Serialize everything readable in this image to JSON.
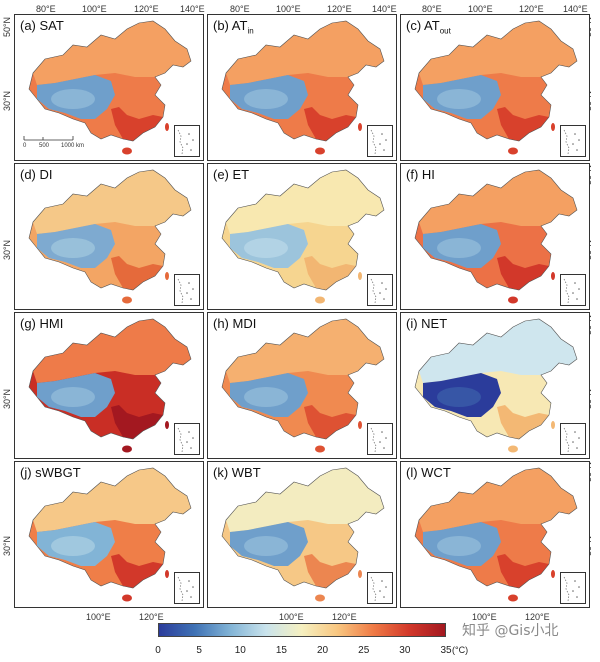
{
  "axes": {
    "top_ticks": [
      "80°E",
      "100°E",
      "120°E",
      "140°E"
    ],
    "bottom_ticks": [
      "100°E",
      "120°E"
    ],
    "lat_ticks": [
      "50°N",
      "30°N"
    ]
  },
  "panels": [
    {
      "label": "(a) SAT",
      "name": "sat"
    },
    {
      "label_main": "(b) AT",
      "label_sub": "in",
      "name": "at-in"
    },
    {
      "label_main": "(c) AT",
      "label_sub": "out",
      "name": "at-out"
    },
    {
      "label": "(d) DI",
      "name": "di"
    },
    {
      "label": "(e) ET",
      "name": "et"
    },
    {
      "label": "(f) HI",
      "name": "hi"
    },
    {
      "label": "(g) HMI",
      "name": "hmi"
    },
    {
      "label": "(h) MDI",
      "name": "mdi"
    },
    {
      "label": "(i) NET",
      "name": "net"
    },
    {
      "label": "(j) sWBGT",
      "name": "swbgt"
    },
    {
      "label": "(k) WBT",
      "name": "wbt"
    },
    {
      "label": "(l) WCT",
      "name": "wct"
    }
  ],
  "scale_bar": {
    "ticks": [
      "0",
      "500",
      "1000 km"
    ]
  },
  "colorbar": {
    "ticks": [
      "0",
      "5",
      "10",
      "15",
      "20",
      "25",
      "30",
      "35"
    ],
    "unit": "(°C)",
    "colors": [
      "#2b3c9b",
      "#3f72b5",
      "#82b4d6",
      "#c9e3ec",
      "#f6f0c0",
      "#f8c680",
      "#ef7a45",
      "#d2382a",
      "#a31820"
    ]
  },
  "watermark": "知乎 @Gis小北",
  "panel_palettes": {
    "sat": {
      "west": "#8fb9d8",
      "north": "#f4a062",
      "east": "#ee7b49",
      "south": "#d8412c",
      "plateau": "#6f9fcb"
    },
    "at-in": {
      "west": "#8fb9d8",
      "north": "#f4a062",
      "east": "#ee7b49",
      "south": "#d8412c",
      "plateau": "#6f9fcb"
    },
    "at-out": {
      "west": "#8fb9d8",
      "north": "#f4a062",
      "east": "#ee7b49",
      "south": "#d8412c",
      "plateau": "#6f9fcb"
    },
    "di": {
      "west": "#9cc4dc",
      "north": "#f5c888",
      "east": "#f3a564",
      "south": "#e56a3b",
      "plateau": "#7eaad0"
    },
    "et": {
      "west": "#b6d6e6",
      "north": "#f8e8b0",
      "east": "#f6d590",
      "south": "#f2b672",
      "plateau": "#9cc4dc"
    },
    "hi": {
      "west": "#8fb9d8",
      "north": "#f4a062",
      "east": "#ec7146",
      "south": "#d2382a",
      "plateau": "#6f9fcb"
    },
    "hmi": {
      "west": "#8fb9d8",
      "north": "#ee7b49",
      "east": "#c92e25",
      "south": "#a31820",
      "plateau": "#6f9fcb"
    },
    "mdi": {
      "west": "#8fb9d8",
      "north": "#f5b070",
      "east": "#f08a50",
      "south": "#de5233",
      "plateau": "#6f9fcb"
    },
    "net": {
      "west": "#3a5ba8",
      "north": "#cfe6ee",
      "east": "#f7e8b4",
      "south": "#f3b874",
      "plateau": "#2b3c9b"
    },
    "swbgt": {
      "west": "#a6cbe0",
      "north": "#f6c888",
      "east": "#ef7e48",
      "south": "#d2382a",
      "plateau": "#82b4d6"
    },
    "wbt": {
      "west": "#8fb9d8",
      "north": "#f3ecc0",
      "east": "#f6c886",
      "south": "#ec8650",
      "plateau": "#6f9fcb"
    },
    "wct": {
      "west": "#8fb9d8",
      "north": "#f4a062",
      "east": "#ee7b49",
      "south": "#d8412c",
      "plateau": "#6f9fcb"
    }
  }
}
